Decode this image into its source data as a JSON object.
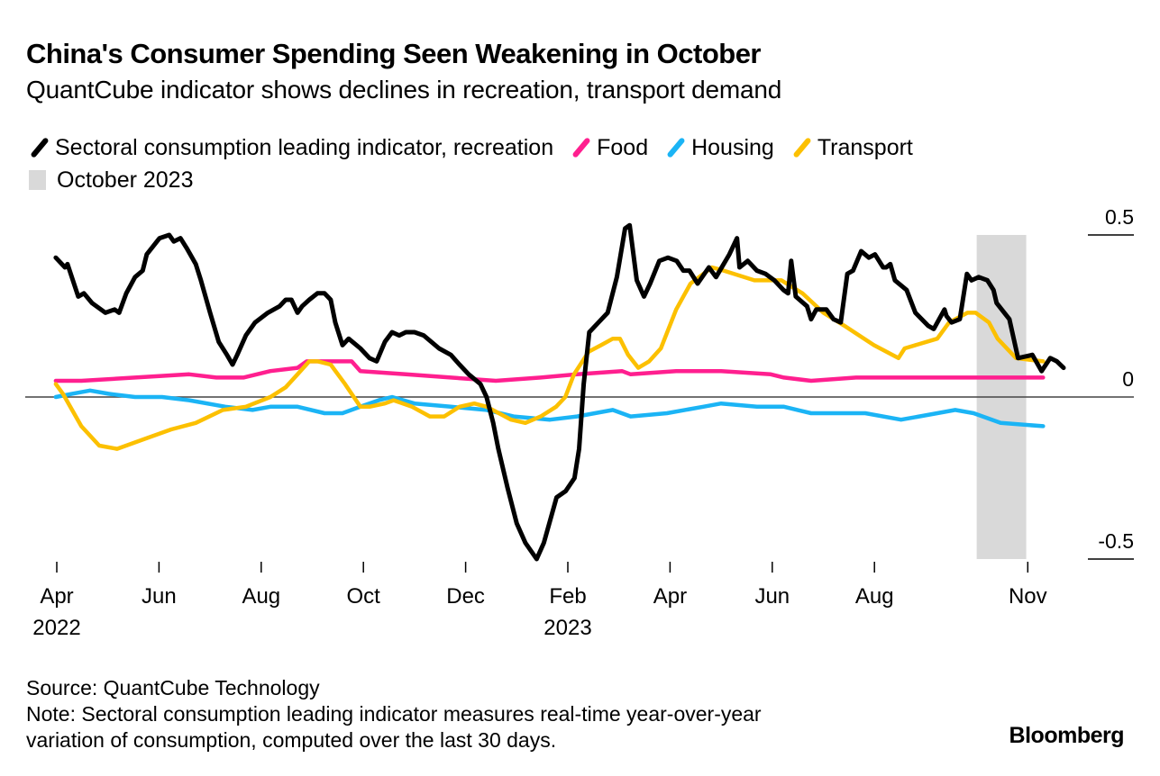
{
  "chart_data": {
    "type": "line",
    "title": "China's Consumer Spending Seen Weakening in October",
    "subtitle": "QuantCube indicator shows declines in recreation, transport demand",
    "xlabel": "",
    "ylabel": "",
    "x_unit": "months since 2022-04-01",
    "xlim": [
      -0.1,
      19.3
    ],
    "ylim": [
      -0.5,
      0.5
    ],
    "yticks": [
      {
        "value": 0.5,
        "label": "0.5"
      },
      {
        "value": 0,
        "label": "0"
      },
      {
        "value": -0.5,
        "label": "-0.5"
      }
    ],
    "xticks": [
      {
        "month": 0,
        "label": "Apr",
        "year": "2022"
      },
      {
        "month": 2,
        "label": "Jun",
        "year": ""
      },
      {
        "month": 4,
        "label": "Aug",
        "year": ""
      },
      {
        "month": 6,
        "label": "Oct",
        "year": ""
      },
      {
        "month": 8,
        "label": "Dec",
        "year": ""
      },
      {
        "month": 10,
        "label": "Feb",
        "year": "2023"
      },
      {
        "month": 12,
        "label": "Apr",
        "year": ""
      },
      {
        "month": 14,
        "label": "Jun",
        "year": ""
      },
      {
        "month": 16,
        "label": "Aug",
        "year": ""
      },
      {
        "month": 19,
        "label": "Nov",
        "year": ""
      }
    ],
    "grid": false,
    "zero_line": true,
    "legend_position": "top-left",
    "shaded_region": {
      "label": "October 2023",
      "x_start": 18.0,
      "x_end": 18.97,
      "color": "#d9d9d9"
    },
    "series": [
      {
        "name": "Sectoral consumption leading indicator, recreation",
        "color": "#000000",
        "points": [
          [
            -0.02,
            0.43
          ],
          [
            0.16,
            0.4
          ],
          [
            0.21,
            0.41
          ],
          [
            0.42,
            0.31
          ],
          [
            0.53,
            0.32
          ],
          [
            0.69,
            0.29
          ],
          [
            0.95,
            0.26
          ],
          [
            1.13,
            0.27
          ],
          [
            1.22,
            0.26
          ],
          [
            1.36,
            0.32
          ],
          [
            1.53,
            0.37
          ],
          [
            1.68,
            0.39
          ],
          [
            1.76,
            0.44
          ],
          [
            2.01,
            0.49
          ],
          [
            2.2,
            0.5
          ],
          [
            2.29,
            0.48
          ],
          [
            2.42,
            0.49
          ],
          [
            2.54,
            0.46
          ],
          [
            2.72,
            0.41
          ],
          [
            2.82,
            0.36
          ],
          [
            3.0,
            0.26
          ],
          [
            3.17,
            0.17
          ],
          [
            3.33,
            0.13
          ],
          [
            3.44,
            0.1
          ],
          [
            3.53,
            0.13
          ],
          [
            3.7,
            0.19
          ],
          [
            3.88,
            0.23
          ],
          [
            4.13,
            0.26
          ],
          [
            4.36,
            0.28
          ],
          [
            4.48,
            0.3
          ],
          [
            4.59,
            0.3
          ],
          [
            4.71,
            0.26
          ],
          [
            4.8,
            0.28
          ],
          [
            4.94,
            0.3
          ],
          [
            5.1,
            0.32
          ],
          [
            5.24,
            0.32
          ],
          [
            5.36,
            0.3
          ],
          [
            5.45,
            0.23
          ],
          [
            5.59,
            0.16
          ],
          [
            5.71,
            0.18
          ],
          [
            5.94,
            0.15
          ],
          [
            6.12,
            0.12
          ],
          [
            6.26,
            0.11
          ],
          [
            6.42,
            0.17
          ],
          [
            6.56,
            0.2
          ],
          [
            6.7,
            0.19
          ],
          [
            6.83,
            0.2
          ],
          [
            7.0,
            0.2
          ],
          [
            7.18,
            0.19
          ],
          [
            7.48,
            0.15
          ],
          [
            7.71,
            0.13
          ],
          [
            7.88,
            0.1
          ],
          [
            8.06,
            0.07
          ],
          [
            8.29,
            0.04
          ],
          [
            8.41,
            0.0
          ],
          [
            8.54,
            -0.08
          ],
          [
            8.64,
            -0.16
          ],
          [
            8.82,
            -0.28
          ],
          [
            9.0,
            -0.39
          ],
          [
            9.17,
            -0.45
          ],
          [
            9.39,
            -0.5
          ],
          [
            9.53,
            -0.45
          ],
          [
            9.78,
            -0.31
          ],
          [
            9.96,
            -0.29
          ],
          [
            10.13,
            -0.25
          ],
          [
            10.22,
            -0.16
          ],
          [
            10.31,
            0.04
          ],
          [
            10.42,
            0.2
          ],
          [
            10.6,
            0.23
          ],
          [
            10.78,
            0.26
          ],
          [
            10.96,
            0.37
          ],
          [
            11.12,
            0.52
          ],
          [
            11.21,
            0.53
          ],
          [
            11.35,
            0.36
          ],
          [
            11.49,
            0.31
          ],
          [
            11.61,
            0.35
          ],
          [
            11.79,
            0.42
          ],
          [
            11.96,
            0.43
          ],
          [
            12.13,
            0.42
          ],
          [
            12.26,
            0.39
          ],
          [
            12.54,
            0.35
          ],
          [
            12.38,
            0.39
          ],
          [
            12.76,
            0.4
          ],
          [
            12.9,
            0.37
          ],
          [
            13.16,
            0.44
          ],
          [
            13.31,
            0.49
          ],
          [
            13.36,
            0.4
          ],
          [
            13.52,
            0.42
          ],
          [
            13.7,
            0.39
          ],
          [
            13.87,
            0.38
          ],
          [
            14.04,
            0.36
          ],
          [
            14.22,
            0.33
          ],
          [
            14.31,
            0.32
          ],
          [
            14.37,
            0.42
          ],
          [
            14.46,
            0.31
          ],
          [
            14.68,
            0.28
          ],
          [
            14.76,
            0.24
          ],
          [
            14.86,
            0.27
          ],
          [
            15.04,
            0.27
          ],
          [
            15.2,
            0.24
          ],
          [
            15.34,
            0.23
          ],
          [
            15.06,
            0.27
          ],
          [
            15.47,
            0.38
          ],
          [
            15.58,
            0.39
          ],
          [
            15.74,
            0.45
          ],
          [
            15.89,
            0.43
          ],
          [
            16.01,
            0.44
          ],
          [
            16.17,
            0.4
          ],
          [
            16.23,
            0.4
          ],
          [
            16.31,
            0.41
          ],
          [
            16.4,
            0.36
          ],
          [
            16.63,
            0.33
          ],
          [
            16.8,
            0.26
          ],
          [
            17.05,
            0.22
          ],
          [
            17.16,
            0.21
          ],
          [
            17.37,
            0.27
          ],
          [
            17.51,
            0.23
          ],
          [
            17.67,
            0.24
          ],
          [
            17.41,
            0.25
          ],
          [
            17.81,
            0.38
          ],
          [
            17.9,
            0.36
          ],
          [
            18.04,
            0.37
          ],
          [
            18.21,
            0.36
          ],
          [
            18.33,
            0.33
          ],
          [
            18.39,
            0.29
          ],
          [
            18.64,
            0.24
          ],
          [
            18.81,
            0.12
          ],
          [
            19.09,
            0.13
          ],
          [
            19.27,
            0.08
          ],
          [
            19.44,
            0.12
          ],
          [
            19.57,
            0.11
          ],
          [
            19.7,
            0.09
          ]
        ]
      },
      {
        "name": "Food",
        "color": "#ff1f8f",
        "points": [
          [
            -0.02,
            0.05
          ],
          [
            0.48,
            0.05
          ],
          [
            1.53,
            0.06
          ],
          [
            2.59,
            0.07
          ],
          [
            3.12,
            0.06
          ],
          [
            3.65,
            0.06
          ],
          [
            4.18,
            0.08
          ],
          [
            4.71,
            0.09
          ],
          [
            4.89,
            0.11
          ],
          [
            5.77,
            0.11
          ],
          [
            5.94,
            0.08
          ],
          [
            6.83,
            0.07
          ],
          [
            7.71,
            0.06
          ],
          [
            8.59,
            0.05
          ],
          [
            9.47,
            0.06
          ],
          [
            10.18,
            0.07
          ],
          [
            11.06,
            0.08
          ],
          [
            11.23,
            0.07
          ],
          [
            12.12,
            0.08
          ],
          [
            13.0,
            0.08
          ],
          [
            13.97,
            0.07
          ],
          [
            14.23,
            0.06
          ],
          [
            14.76,
            0.05
          ],
          [
            15.64,
            0.06
          ],
          [
            16.52,
            0.06
          ],
          [
            17.41,
            0.06
          ],
          [
            18.29,
            0.06
          ],
          [
            19.3,
            0.06
          ]
        ]
      },
      {
        "name": "Housing",
        "color": "#1bb4f5",
        "points": [
          [
            -0.02,
            0.0
          ],
          [
            0.3,
            0.01
          ],
          [
            0.65,
            0.02
          ],
          [
            1.01,
            0.01
          ],
          [
            1.53,
            0.0
          ],
          [
            2.06,
            0.0
          ],
          [
            2.59,
            -0.01
          ],
          [
            3.3,
            -0.03
          ],
          [
            3.83,
            -0.04
          ],
          [
            4.18,
            -0.03
          ],
          [
            4.71,
            -0.03
          ],
          [
            5.24,
            -0.05
          ],
          [
            5.59,
            -0.05
          ],
          [
            5.94,
            -0.03
          ],
          [
            6.3,
            -0.01
          ],
          [
            6.56,
            0.0
          ],
          [
            7.0,
            -0.02
          ],
          [
            7.71,
            -0.03
          ],
          [
            8.41,
            -0.04
          ],
          [
            8.94,
            -0.06
          ],
          [
            9.65,
            -0.07
          ],
          [
            10.18,
            -0.06
          ],
          [
            10.88,
            -0.04
          ],
          [
            11.23,
            -0.06
          ],
          [
            11.94,
            -0.05
          ],
          [
            12.65,
            -0.03
          ],
          [
            13.0,
            -0.02
          ],
          [
            13.7,
            -0.03
          ],
          [
            14.23,
            -0.03
          ],
          [
            14.76,
            -0.05
          ],
          [
            15.47,
            -0.05
          ],
          [
            15.82,
            -0.05
          ],
          [
            16.52,
            -0.07
          ],
          [
            17.23,
            -0.05
          ],
          [
            17.58,
            -0.04
          ],
          [
            17.94,
            -0.05
          ],
          [
            18.47,
            -0.08
          ],
          [
            19.3,
            -0.09
          ]
        ]
      },
      {
        "name": "Transport",
        "color": "#fcc000",
        "points": [
          [
            -0.02,
            0.04
          ],
          [
            0.12,
            0.01
          ],
          [
            0.48,
            -0.09
          ],
          [
            0.83,
            -0.15
          ],
          [
            1.18,
            -0.16
          ],
          [
            1.71,
            -0.13
          ],
          [
            2.24,
            -0.1
          ],
          [
            2.72,
            -0.08
          ],
          [
            3.25,
            -0.04
          ],
          [
            3.7,
            -0.03
          ],
          [
            4.18,
            0.0
          ],
          [
            4.48,
            0.03
          ],
          [
            4.71,
            0.07
          ],
          [
            4.94,
            0.11
          ],
          [
            5.11,
            0.11
          ],
          [
            5.36,
            0.1
          ],
          [
            5.64,
            0.04
          ],
          [
            5.94,
            -0.03
          ],
          [
            6.12,
            -0.03
          ],
          [
            6.42,
            -0.02
          ],
          [
            6.59,
            -0.01
          ],
          [
            6.95,
            -0.03
          ],
          [
            7.3,
            -0.06
          ],
          [
            7.58,
            -0.06
          ],
          [
            7.88,
            -0.03
          ],
          [
            8.17,
            -0.02
          ],
          [
            8.41,
            -0.03
          ],
          [
            8.89,
            -0.07
          ],
          [
            9.17,
            -0.08
          ],
          [
            9.47,
            -0.06
          ],
          [
            9.77,
            -0.03
          ],
          [
            9.95,
            0.0
          ],
          [
            10.12,
            0.07
          ],
          [
            10.41,
            0.14
          ],
          [
            10.65,
            0.16
          ],
          [
            10.88,
            0.18
          ],
          [
            11.02,
            0.18
          ],
          [
            11.18,
            0.13
          ],
          [
            11.38,
            0.09
          ],
          [
            11.59,
            0.11
          ],
          [
            11.82,
            0.15
          ],
          [
            12.12,
            0.27
          ],
          [
            12.4,
            0.35
          ],
          [
            12.82,
            0.4
          ],
          [
            13.05,
            0.39
          ],
          [
            13.65,
            0.36
          ],
          [
            14.18,
            0.36
          ],
          [
            14.59,
            0.32
          ],
          [
            15.0,
            0.26
          ],
          [
            15.41,
            0.22
          ],
          [
            15.99,
            0.16
          ],
          [
            16.47,
            0.12
          ],
          [
            16.59,
            0.15
          ],
          [
            17.23,
            0.18
          ],
          [
            17.46,
            0.23
          ],
          [
            17.82,
            0.26
          ],
          [
            17.98,
            0.26
          ],
          [
            18.24,
            0.23
          ],
          [
            18.41,
            0.18
          ],
          [
            18.77,
            0.12
          ],
          [
            19.3,
            0.11
          ]
        ]
      }
    ]
  },
  "legend": {
    "items": [
      {
        "label": "Sectoral consumption leading indicator, recreation",
        "color": "#000000"
      },
      {
        "label": "Food",
        "color": "#ff1f8f"
      },
      {
        "label": "Housing",
        "color": "#1bb4f5"
      },
      {
        "label": "Transport",
        "color": "#fcc000"
      }
    ],
    "shade_label": "October 2023"
  },
  "footer": {
    "source": "Source: QuantCube Technology",
    "note_line1": "Note: Sectoral consumption leading indicator measures real-time year-over-year",
    "note_line2": "variation of consumption, computed over the last 30 days.",
    "brand": "Bloomberg"
  }
}
